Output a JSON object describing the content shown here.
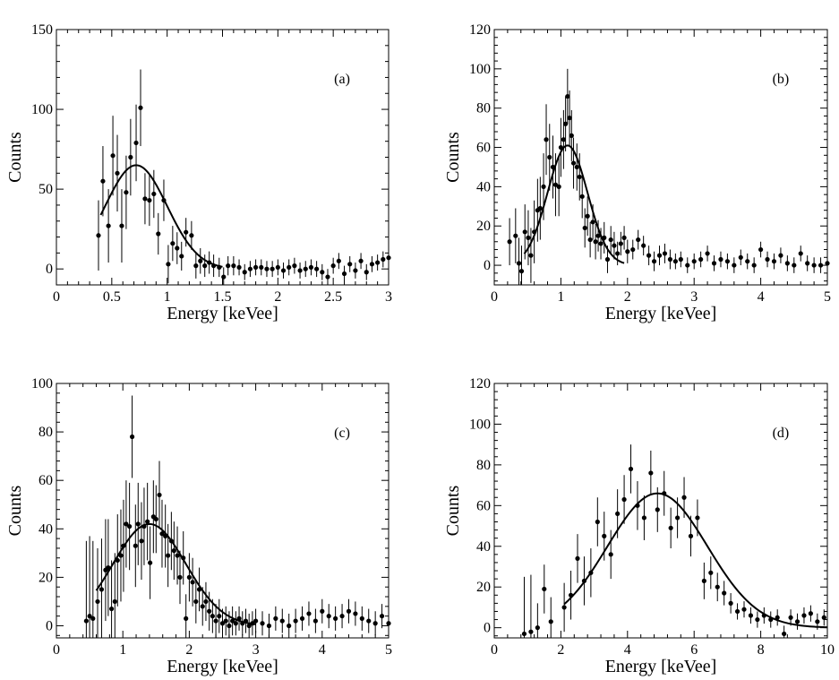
{
  "chart_data": [
    {
      "type": "scatter",
      "panel_label": "(a)",
      "xlabel": "Energy [keVee]",
      "ylabel": "Counts",
      "xlim": [
        0,
        3
      ],
      "ylim": [
        -10,
        150
      ],
      "xticks": [
        0,
        0.5,
        1,
        1.5,
        2,
        2.5,
        3
      ],
      "xtick_labels": [
        "0",
        "0.5",
        "1",
        "1.5",
        "2",
        "2.5",
        "3"
      ],
      "yticks": [
        0,
        50,
        100,
        150
      ],
      "ytick_labels": [
        "0",
        "50",
        "100",
        "150"
      ],
      "series": [
        {
          "name": "data",
          "x": [
            0.38,
            0.42,
            0.47,
            0.51,
            0.55,
            0.59,
            0.63,
            0.67,
            0.72,
            0.76,
            0.8,
            0.84,
            0.88,
            0.92,
            0.97,
            1.01,
            1.05,
            1.09,
            1.13,
            1.17,
            1.22,
            1.26,
            1.3,
            1.34,
            1.38,
            1.42,
            1.47,
            1.51,
            1.55,
            1.6,
            1.65,
            1.7,
            1.75,
            1.8,
            1.85,
            1.9,
            1.95,
            2.0,
            2.05,
            2.1,
            2.15,
            2.2,
            2.25,
            2.3,
            2.35,
            2.4,
            2.45,
            2.5,
            2.55,
            2.6,
            2.65,
            2.7,
            2.75,
            2.8,
            2.85,
            2.9,
            2.95,
            3.0
          ],
          "y": [
            21,
            55,
            27,
            71,
            60,
            27,
            48,
            70,
            79,
            101,
            44,
            43,
            47,
            22,
            43,
            3,
            16,
            13,
            8,
            23,
            21,
            2,
            5,
            2,
            4,
            2,
            1,
            -5,
            2,
            2,
            1,
            -2,
            0,
            1,
            1,
            0,
            0,
            1,
            -1,
            1,
            2,
            -1,
            0,
            1,
            0,
            -2,
            -5,
            2,
            5,
            -3,
            3,
            -1,
            5,
            -2,
            3,
            4,
            6,
            7
          ],
          "err": [
            22,
            22,
            23,
            25,
            24,
            23,
            23,
            24,
            24,
            24,
            16,
            16,
            15,
            13,
            13,
            12,
            11,
            10,
            9,
            9,
            9,
            8,
            8,
            7,
            7,
            7,
            6,
            6,
            6,
            6,
            5,
            5,
            5,
            5,
            5,
            5,
            5,
            5,
            5,
            5,
            5,
            5,
            5,
            5,
            5,
            5,
            5,
            5,
            5,
            5,
            5,
            5,
            5,
            5,
            5,
            5,
            5,
            5
          ]
        },
        {
          "name": "gaussian fit",
          "fit": {
            "amplitude": 65,
            "mean": 0.72,
            "sigma": 0.28,
            "x_range": [
              0.4,
              1.5
            ]
          }
        }
      ]
    },
    {
      "type": "scatter",
      "panel_label": "(b)",
      "xlabel": "Energy [keVee]",
      "ylabel": "Counts",
      "xlim": [
        0,
        5
      ],
      "ylim": [
        -10,
        120
      ],
      "xticks": [
        0,
        1,
        2,
        3,
        4,
        5
      ],
      "xtick_labels": [
        "0",
        "1",
        "2",
        "3",
        "4",
        "5"
      ],
      "yticks": [
        0,
        20,
        40,
        60,
        80,
        100,
        120
      ],
      "ytick_labels": [
        "0",
        "20",
        "40",
        "60",
        "80",
        "100",
        "120"
      ],
      "series": [
        {
          "name": "data",
          "x": [
            0.23,
            0.32,
            0.37,
            0.41,
            0.46,
            0.51,
            0.55,
            0.6,
            0.65,
            0.69,
            0.74,
            0.78,
            0.83,
            0.88,
            0.92,
            0.97,
            1.0,
            1.04,
            1.07,
            1.1,
            1.13,
            1.16,
            1.19,
            1.24,
            1.28,
            1.32,
            1.36,
            1.4,
            1.44,
            1.48,
            1.52,
            1.56,
            1.6,
            1.65,
            1.7,
            1.75,
            1.8,
            1.85,
            1.9,
            1.95,
            2.0,
            2.08,
            2.16,
            2.24,
            2.32,
            2.4,
            2.48,
            2.56,
            2.64,
            2.72,
            2.8,
            2.9,
            3.0,
            3.1,
            3.2,
            3.3,
            3.4,
            3.5,
            3.6,
            3.7,
            3.8,
            3.9,
            4.0,
            4.1,
            4.2,
            4.3,
            4.4,
            4.5,
            4.6,
            4.7,
            4.8,
            4.9,
            5.0
          ],
          "y": [
            12,
            15,
            1,
            -3,
            17,
            14,
            5,
            17,
            28,
            29,
            40,
            64,
            55,
            50,
            41,
            40,
            60,
            64,
            72,
            86,
            75,
            66,
            52,
            50,
            45,
            35,
            19,
            25,
            13,
            22,
            12,
            15,
            11,
            14,
            3,
            13,
            10,
            6,
            11,
            14,
            7,
            8,
            13,
            10,
            5,
            2,
            5,
            6,
            3,
            2,
            3,
            0,
            2,
            3,
            6,
            1,
            3,
            2,
            0,
            4,
            2,
            0,
            8,
            3,
            2,
            5,
            1,
            0,
            6,
            1,
            0,
            0,
            1
          ],
          "err": [
            12,
            14,
            13,
            13,
            14,
            14,
            14,
            16,
            16,
            16,
            17,
            18,
            17,
            16,
            16,
            15,
            15,
            15,
            14,
            14,
            14,
            13,
            13,
            12,
            12,
            11,
            10,
            10,
            9,
            9,
            9,
            8,
            8,
            8,
            7,
            7,
            7,
            6,
            6,
            6,
            6,
            5,
            5,
            5,
            5,
            5,
            5,
            5,
            5,
            4,
            4,
            4,
            4,
            4,
            4,
            4,
            4,
            4,
            4,
            4,
            4,
            4,
            4,
            4,
            4,
            4,
            4,
            4,
            4,
            4,
            4,
            4,
            4
          ]
        },
        {
          "name": "gaussian fit",
          "fit": {
            "amplitude": 61,
            "mean": 1.1,
            "sigma": 0.3,
            "x_range": [
              0.45,
              1.95
            ]
          }
        }
      ]
    },
    {
      "type": "scatter",
      "panel_label": "(c)",
      "xlabel": "Energy [keVee]",
      "ylabel": "Counts",
      "xlim": [
        0,
        5
      ],
      "ylim": [
        -5,
        100
      ],
      "xticks": [
        0,
        1,
        2,
        3,
        4,
        5
      ],
      "xtick_labels": [
        "0",
        "1",
        "2",
        "3",
        "4",
        "5"
      ],
      "yticks": [
        0,
        20,
        40,
        60,
        80,
        100
      ],
      "ytick_labels": [
        "0",
        "20",
        "40",
        "60",
        "80",
        "100"
      ],
      "series": [
        {
          "name": "data",
          "x": [
            0.45,
            0.5,
            0.55,
            0.62,
            0.68,
            0.74,
            0.78,
            0.83,
            0.88,
            0.92,
            0.97,
            1.01,
            1.05,
            1.1,
            1.14,
            1.19,
            1.23,
            1.28,
            1.32,
            1.37,
            1.41,
            1.46,
            1.5,
            1.55,
            1.59,
            1.64,
            1.68,
            1.73,
            1.77,
            1.82,
            1.86,
            1.91,
            1.95,
            2.0,
            2.05,
            2.1,
            2.15,
            2.2,
            2.25,
            2.3,
            2.35,
            2.4,
            2.45,
            2.5,
            2.55,
            2.6,
            2.65,
            2.7,
            2.75,
            2.8,
            2.85,
            2.9,
            2.95,
            3.0,
            3.1,
            3.2,
            3.3,
            3.4,
            3.5,
            3.6,
            3.7,
            3.8,
            3.9,
            4.0,
            4.1,
            4.2,
            4.3,
            4.4,
            4.5,
            4.6,
            4.7,
            4.8,
            4.9,
            5.0
          ],
          "y": [
            2,
            4,
            3,
            10,
            15,
            23,
            24,
            7,
            10,
            27,
            29,
            33,
            42,
            41,
            78,
            33,
            42,
            35,
            41,
            43,
            26,
            45,
            44,
            54,
            38,
            37,
            29,
            35,
            31,
            29,
            20,
            28,
            3,
            20,
            18,
            10,
            15,
            8,
            10,
            6,
            4,
            2,
            4,
            1,
            2,
            0,
            2,
            1,
            3,
            1,
            2,
            0,
            1,
            2,
            1,
            0,
            3,
            2,
            0,
            2,
            3,
            5,
            2,
            6,
            4,
            3,
            4,
            6,
            5,
            3,
            2,
            1,
            4,
            1
          ],
          "err": [
            33,
            33,
            32,
            22,
            21,
            21,
            20,
            20,
            20,
            19,
            19,
            19,
            18,
            18,
            17,
            17,
            17,
            16,
            16,
            16,
            15,
            15,
            14,
            14,
            14,
            13,
            13,
            12,
            12,
            12,
            11,
            11,
            10,
            10,
            10,
            9,
            9,
            8,
            8,
            8,
            7,
            7,
            7,
            6,
            6,
            6,
            6,
            5,
            5,
            5,
            5,
            5,
            5,
            5,
            5,
            5,
            5,
            5,
            5,
            5,
            5,
            5,
            5,
            5,
            5,
            5,
            5,
            5,
            5,
            5,
            5,
            5,
            5,
            5
          ]
        },
        {
          "name": "gaussian fit",
          "fit": {
            "amplitude": 42,
            "mean": 1.4,
            "sigma": 0.55,
            "x_range": [
              0.6,
              3.0
            ]
          }
        }
      ]
    },
    {
      "type": "scatter",
      "panel_label": "(d)",
      "xlabel": "Energy [keVee]",
      "ylabel": "Counts",
      "xlim": [
        0,
        10
      ],
      "ylim": [
        -5,
        120
      ],
      "xticks": [
        0,
        2,
        4,
        6,
        8,
        10
      ],
      "xtick_labels": [
        "0",
        "2",
        "4",
        "6",
        "8",
        "10"
      ],
      "yticks": [
        0,
        20,
        40,
        60,
        80,
        100,
        120
      ],
      "ytick_labels": [
        "0",
        "20",
        "40",
        "60",
        "80",
        "100",
        "120"
      ],
      "series": [
        {
          "name": "data",
          "x": [
            0.9,
            1.1,
            1.3,
            1.5,
            1.7,
            2.1,
            2.3,
            2.5,
            2.7,
            2.9,
            3.1,
            3.3,
            3.5,
            3.7,
            3.9,
            4.1,
            4.3,
            4.5,
            4.7,
            4.9,
            5.1,
            5.3,
            5.5,
            5.7,
            5.9,
            6.1,
            6.3,
            6.5,
            6.7,
            6.9,
            7.1,
            7.3,
            7.5,
            7.7,
            7.9,
            8.1,
            8.3,
            8.5,
            8.7,
            8.9,
            9.1,
            9.3,
            9.5,
            9.7,
            9.9
          ],
          "y": [
            -3,
            -2,
            0,
            19,
            3,
            10,
            16,
            34,
            23,
            27,
            52,
            45,
            36,
            56,
            63,
            78,
            60,
            54,
            76,
            58,
            66,
            49,
            54,
            64,
            45,
            54,
            23,
            27,
            20,
            17,
            12,
            8,
            9,
            6,
            4,
            6,
            4,
            5,
            -3,
            5,
            3,
            6,
            7,
            3,
            5
          ],
          "err": [
            28,
            28,
            12,
            12,
            12,
            12,
            12,
            12,
            12,
            12,
            12,
            12,
            12,
            12,
            12,
            12,
            12,
            11,
            11,
            11,
            11,
            10,
            10,
            10,
            10,
            9,
            9,
            8,
            7,
            6,
            5,
            4,
            4,
            4,
            4,
            4,
            4,
            4,
            4,
            4,
            4,
            4,
            4,
            4,
            4
          ]
        },
        {
          "name": "gaussian fit",
          "fit": {
            "amplitude": 66,
            "mean": 4.9,
            "sigma": 1.5,
            "x_range": [
              2.1,
              10.0
            ]
          }
        }
      ]
    }
  ]
}
